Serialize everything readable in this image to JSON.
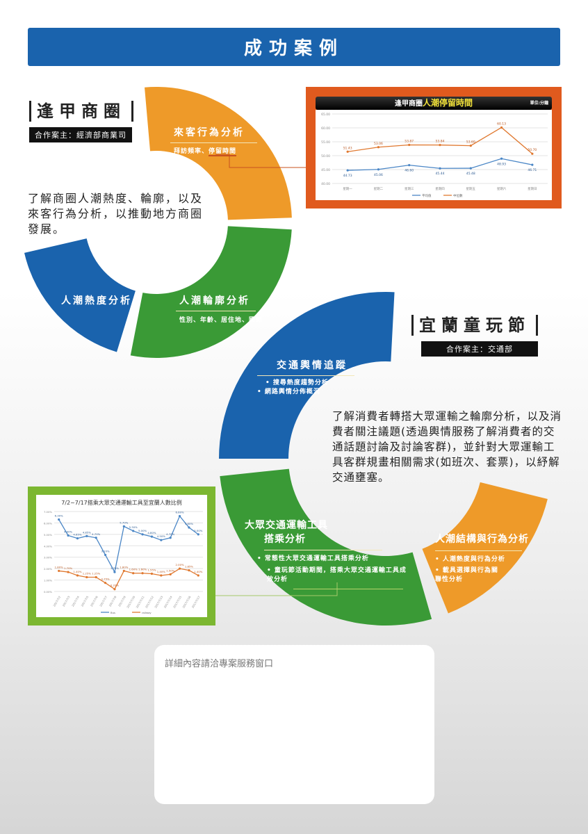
{
  "header": {
    "title": "成功案例"
  },
  "case1": {
    "title": "逢甲商圈",
    "client": "合作案主：經濟部商業司",
    "description": "了解商圈人潮熱度、輪廓，以及來客行為分析，以推動地方商圈發展。",
    "segments": [
      {
        "title": "來客行為分析",
        "sub": "拜訪頻率、",
        "sub_highlight": "停留時間",
        "color": "#ee9a29"
      },
      {
        "title": "人潮輪廓分析",
        "sub": "性別、年齡、居住地、國籍",
        "color": "#3a9a36"
      },
      {
        "title": "人潮熱度分析",
        "color": "#1a63ad"
      }
    ]
  },
  "case2": {
    "title": "宜蘭童玩節",
    "client": "合作案主：交通部",
    "description": "了解消費者轉搭大眾運輸之輪廓分析，以及消費者關注議題(透過輿情服務了解消費者的交通話題討論及討論客群)，並針對大眾運輸工具客群規畫相關需求(如班次、套票)，以紓解交通壅塞。",
    "segments": [
      {
        "title": "交通輿情追蹤",
        "bullets": [
          "搜尋熱度趨勢分析",
          "網路輿情分佈概況"
        ],
        "color": "#1a63ad"
      },
      {
        "title_line1": "大眾交通運輸工具",
        "title_line2": "搭乘分析",
        "bullets": [
          "常態性大眾交通運輸工具搭乘分析",
          "童玩節活動期間，搭乘大眾交通運輸工具成效分析"
        ],
        "color": "#3a9a36"
      },
      {
        "title": "人潮結構與行為分析",
        "bullets": [
          "人潮熱度與行為分析",
          "載具選擇與行為關聯性分析"
        ],
        "color": "#ee9a29"
      }
    ]
  },
  "contact": {
    "text": "詳細內容請洽專案服務窗口"
  },
  "chart_data": [
    {
      "type": "line",
      "title_prefix": "逢甲商圈",
      "title": "人潮停留時間",
      "unit": "單位:分鐘",
      "categories": [
        "星期一",
        "星期二",
        "星期三",
        "星期四",
        "星期五",
        "星期六",
        "星期日"
      ],
      "ylim": [
        40,
        65
      ],
      "yticks": [
        "40.00",
        "45.00",
        "50.00",
        "55.00",
        "60.00",
        "65.00"
      ],
      "grid": true,
      "legend": "bottom",
      "series": [
        {
          "name": "平均值",
          "color": "#4a86c6",
          "values": [
            44.73,
            45.06,
            46.6,
            45.44,
            45.48,
            48.93,
            46.71
          ]
        },
        {
          "name": "中位數",
          "color": "#e0782f",
          "values": [
            51.43,
            53.06,
            53.87,
            53.84,
            53.6,
            60.13,
            50.7
          ]
        }
      ]
    },
    {
      "type": "line",
      "title": "7/2~7/17搭乘大眾交通運輸工具至宜蘭人數比例",
      "categories": [
        "2017/7/2",
        "2017/7/3",
        "2017/7/4",
        "2017/7/5",
        "2017/7/6",
        "2017/7/7",
        "2017/7/8",
        "2017/7/9",
        "2017/7/10",
        "2017/7/11",
        "2017/7/12",
        "2017/7/13",
        "2017/7/14",
        "2017/7/15",
        "2017/7/16",
        "2017/7/17"
      ],
      "ylim": [
        0,
        7
      ],
      "yticks": [
        "0.00%",
        "1.00%",
        "2.00%",
        "3.00%",
        "4.00%",
        "5.00%",
        "6.00%",
        "7.00%"
      ],
      "grid": true,
      "legend": "bottom",
      "series": [
        {
          "name": "Bus",
          "color": "#4a86c6",
          "values": [
            6.3,
            4.9,
            4.65,
            4.85,
            4.7,
            3.2,
            1.7,
            5.7,
            5.3,
            5.0,
            4.8,
            4.5,
            4.7,
            6.6,
            5.6,
            5.0
          ]
        },
        {
          "name": "railway",
          "color": "#e0782f",
          "values": [
            1.8,
            1.7,
            1.4,
            1.25,
            1.25,
            0.75,
            0.2,
            1.8,
            1.6,
            1.6,
            1.55,
            1.4,
            1.5,
            2.0,
            1.85,
            1.4
          ]
        }
      ]
    }
  ]
}
